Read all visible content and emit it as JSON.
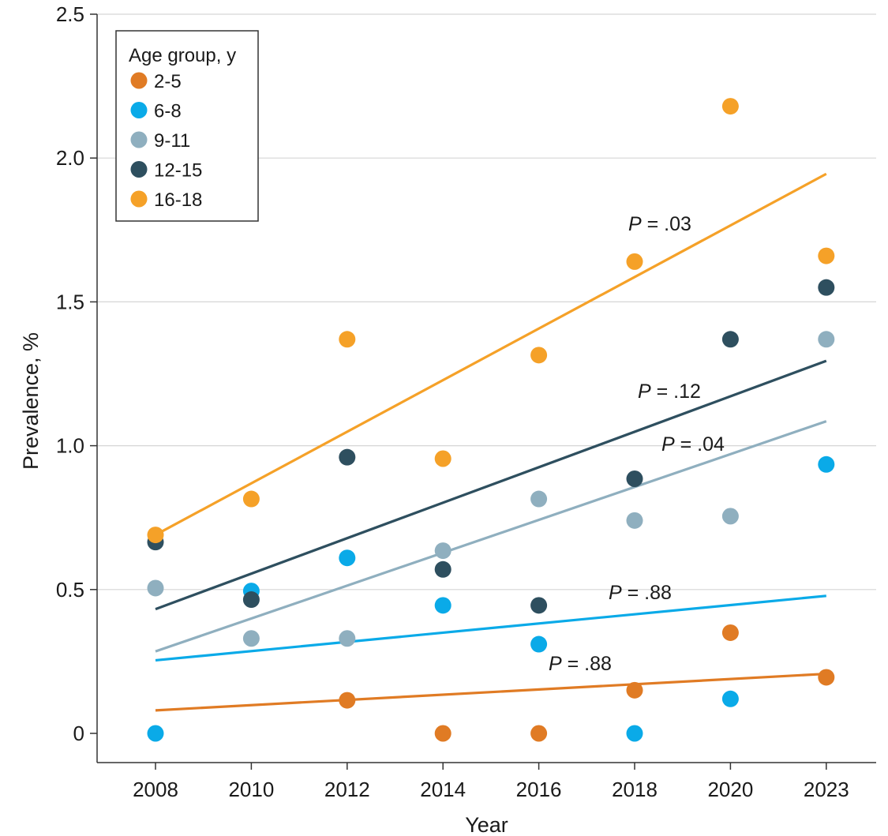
{
  "chart_data": {
    "type": "scatter",
    "xlabel": "Year",
    "ylabel": "Prevalence, %",
    "categories": [
      "2008",
      "2010",
      "2012",
      "2014",
      "2016",
      "2018",
      "2020",
      "2023"
    ],
    "ylim": [
      0,
      2.5
    ],
    "yticks": [
      "0",
      "0.5",
      "1.0",
      "1.5",
      "2.0",
      "2.5"
    ],
    "grid": "horizontal",
    "legend": {
      "title": "Age group, y",
      "position": "top-left"
    },
    "series": [
      {
        "name": "2-5",
        "color": "#e07b24",
        "values": [
          null,
          null,
          0.115,
          0.0,
          0.0,
          0.15,
          0.35,
          0.195
        ],
        "trend": [
          0.08,
          0.207
        ],
        "p_prefix": "P",
        "p_value": " = .88"
      },
      {
        "name": "6-8",
        "color": "#0aaae8",
        "values": [
          0.0,
          0.495,
          0.61,
          0.445,
          0.31,
          0.0,
          0.12,
          0.935
        ],
        "trend": [
          0.254,
          0.478
        ],
        "p_prefix": "P",
        "p_value": " = .88"
      },
      {
        "name": "9-11",
        "color": "#8fafbf",
        "values": [
          0.505,
          0.33,
          0.33,
          0.635,
          0.815,
          0.74,
          0.755,
          1.37
        ],
        "trend": [
          0.285,
          1.085
        ],
        "p_prefix": "P",
        "p_value": " = .04"
      },
      {
        "name": "12-15",
        "color": "#2e4f5f",
        "values": [
          0.665,
          0.465,
          0.96,
          0.57,
          0.445,
          0.885,
          1.37,
          1.55
        ],
        "trend": [
          0.432,
          1.295
        ],
        "p_prefix": "P",
        "p_value": " = .12"
      },
      {
        "name": "16-18",
        "color": "#f5a128",
        "values": [
          0.69,
          0.815,
          1.37,
          0.955,
          1.315,
          1.64,
          2.18,
          1.66
        ],
        "trend": [
          0.69,
          1.945
        ],
        "p_prefix": "P",
        "p_value": " = .03"
      }
    ]
  }
}
